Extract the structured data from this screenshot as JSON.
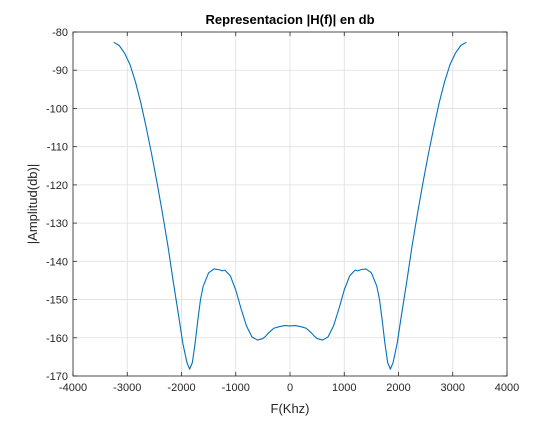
{
  "chart_data": {
    "type": "line",
    "title": "Representacion |H(f)| en db",
    "xlabel": "F(Khz)",
    "ylabel": "|Amplitud(db)|",
    "xlim": [
      -4000,
      4000
    ],
    "ylim": [
      -170,
      -80
    ],
    "xticks": [
      -4000,
      -3000,
      -2000,
      -1000,
      0,
      1000,
      2000,
      3000,
      4000
    ],
    "yticks": [
      -170,
      -160,
      -150,
      -140,
      -130,
      -120,
      -110,
      -100,
      -90,
      -80
    ],
    "xtick_labels": [
      "-4000",
      "-3000",
      "-2000",
      "-1000",
      "0",
      "1000",
      "2000",
      "3000",
      "4000"
    ],
    "ytick_labels": [
      "-170",
      "-160",
      "-150",
      "-140",
      "-130",
      "-120",
      "-110",
      "-100",
      "-90",
      "-80"
    ],
    "grid": true,
    "line_color": "#0072BD",
    "series": [
      {
        "x": [
          -3250,
          -3150,
          -3050,
          -2950,
          -2850,
          -2750,
          -2650,
          -2550,
          -2450,
          -2350,
          -2250,
          -2150,
          -2050,
          -1975,
          -1900,
          -1850,
          -1800,
          -1750,
          -1700,
          -1650,
          -1600,
          -1500,
          -1400,
          -1300,
          -1250,
          -1200,
          -1100,
          -1000,
          -900,
          -800,
          -700,
          -600,
          -500,
          -450,
          -400,
          -300,
          -200,
          -100,
          0,
          100,
          200,
          300,
          400,
          450,
          500,
          600,
          700,
          800,
          900,
          1000,
          1100,
          1200,
          1250,
          1300,
          1400,
          1500,
          1600,
          1650,
          1700,
          1750,
          1800,
          1850,
          1900,
          1975,
          2050,
          2150,
          2250,
          2350,
          2450,
          2550,
          2650,
          2750,
          2850,
          2950,
          3050,
          3150,
          3250
        ],
        "y": [
          -82.7,
          -83.5,
          -85.5,
          -88.5,
          -93.0,
          -98.5,
          -105.0,
          -112.0,
          -119.5,
          -127.5,
          -136.0,
          -145.5,
          -154.5,
          -161.5,
          -166.5,
          -168.2,
          -166.5,
          -161.5,
          -155.5,
          -150.0,
          -146.5,
          -143.0,
          -142.0,
          -142.2,
          -142.5,
          -142.3,
          -143.8,
          -147.5,
          -152.5,
          -157.0,
          -159.8,
          -160.6,
          -160.2,
          -159.6,
          -158.8,
          -157.5,
          -157.1,
          -156.8,
          -156.9,
          -156.8,
          -157.1,
          -157.5,
          -158.8,
          -159.6,
          -160.2,
          -160.6,
          -159.8,
          -157.0,
          -152.5,
          -147.5,
          -143.8,
          -142.3,
          -142.5,
          -142.2,
          -142.0,
          -143.0,
          -146.5,
          -150.0,
          -155.5,
          -161.5,
          -166.5,
          -168.2,
          -166.5,
          -161.5,
          -154.5,
          -145.5,
          -136.0,
          -127.5,
          -119.5,
          -112.0,
          -105.0,
          -98.5,
          -93.0,
          -88.5,
          -85.5,
          -83.5,
          -82.7
        ]
      }
    ]
  }
}
